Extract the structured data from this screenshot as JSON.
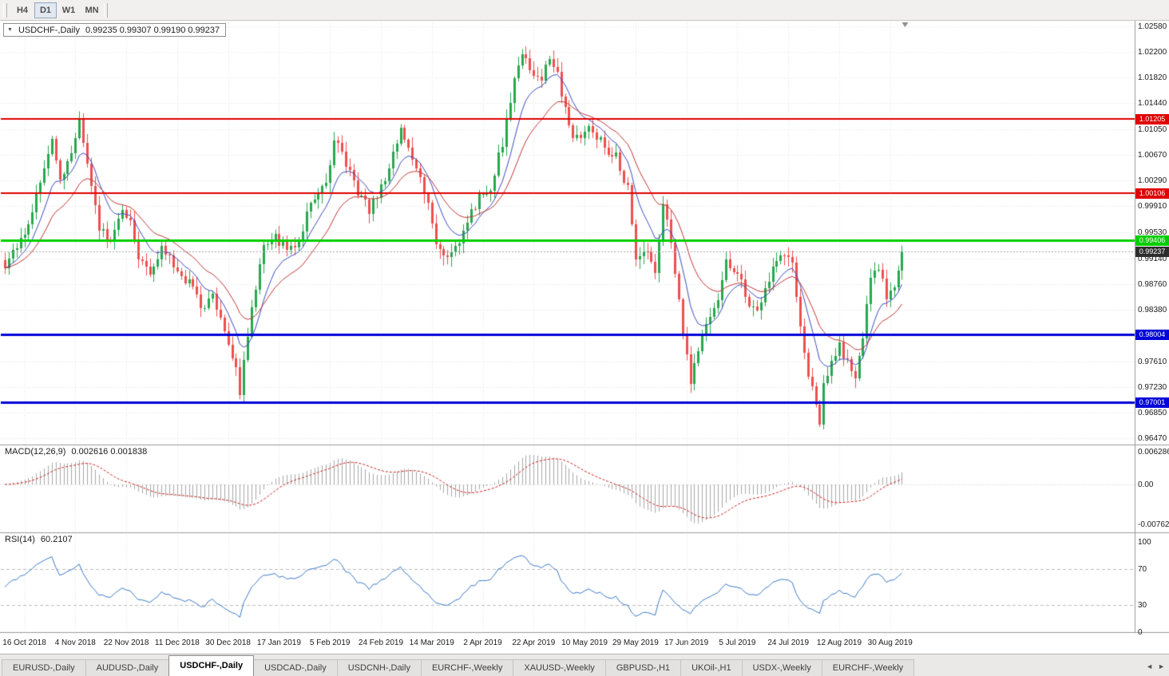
{
  "icons": {
    "collapse": "▼",
    "tab_scroll_left": "◄",
    "tab_scroll_right": "►"
  },
  "toolbar": {
    "timeframes": [
      {
        "label": "H4",
        "active": false
      },
      {
        "label": "D1",
        "active": true
      },
      {
        "label": "W1",
        "active": false
      },
      {
        "label": "MN",
        "active": false
      }
    ]
  },
  "chart": {
    "symbol_info": "USDCHF-,Daily",
    "ohlc": "0.99235 0.99307 0.99190 0.99237",
    "current_price": "0.99237",
    "y_ticks": [
      "1.02580",
      "1.02200",
      "1.01820",
      "1.01440",
      "1.01050",
      "1.00670",
      "1.00290",
      "0.99910",
      "0.99530",
      "0.99140",
      "0.98760",
      "0.98380",
      "0.97610",
      "0.97230",
      "0.96850",
      "0.96470"
    ],
    "levels": [
      {
        "label": "1.01205",
        "value": 1.01205,
        "color": "#e00000",
        "width": 2
      },
      {
        "label": "1.00106",
        "value": 1.00106,
        "color": "#e00000",
        "width": 2
      },
      {
        "label": "0.99406",
        "value": 0.99406,
        "color": "#00ce00",
        "width": 3
      },
      {
        "label": "0.98004",
        "value": 0.98004,
        "color": "#0000d8",
        "width": 3
      },
      {
        "label": "0.97001",
        "value": 0.97001,
        "color": "#0000d8",
        "width": 3
      }
    ],
    "x_labels": [
      "16 Oct 2018",
      "4 Nov 2018",
      "22 Nov 2018",
      "11 Dec 2018",
      "30 Dec 2018",
      "17 Jan 2019",
      "5 Feb 2019",
      "24 Feb 2019",
      "14 Mar 2019",
      "2 Apr 2019",
      "22 Apr 2019",
      "10 May 2019",
      "29 May 2019",
      "17 Jun 2019",
      "5 Jul 2019",
      "24 Jul 2019",
      "12 Aug 2019",
      "30 Aug 2019"
    ]
  },
  "macd": {
    "label": "MACD(12,26,9)",
    "values": "0.002616 0.001838",
    "axis": [
      "0.006286",
      "0.00",
      "-0.00762"
    ]
  },
  "rsi": {
    "label": "RSI(14)",
    "value": "60.2107",
    "axis": [
      "100",
      "70",
      "30",
      "0"
    ]
  },
  "tabs": {
    "items": [
      {
        "label": "EURUSD-,Daily",
        "active": false
      },
      {
        "label": "AUDUSD-,Daily",
        "active": false
      },
      {
        "label": "USDCHF-,Daily",
        "active": true
      },
      {
        "label": "USDCAD-,Daily",
        "active": false
      },
      {
        "label": "USDCNH-,Daily",
        "active": false
      },
      {
        "label": "EURCHF-,Weekly",
        "active": false
      },
      {
        "label": "XAUUSD-,Weekly",
        "active": false
      },
      {
        "label": "GBPUSD-,H1",
        "active": false
      },
      {
        "label": "UKOil-,H1",
        "active": false
      },
      {
        "label": "USDX-,Weekly",
        "active": false
      },
      {
        "label": "EURCHF-,Weekly",
        "active": false
      }
    ]
  },
  "chart_data": {
    "type": "candlestick",
    "symbol": "USDCHF",
    "timeframe": "Daily",
    "title": "USDCHF-,Daily",
    "ohlc_current": {
      "open": 0.99235,
      "high": 0.99307,
      "low": 0.9919,
      "close": 0.99237
    },
    "ylim": [
      0.9647,
      1.0258
    ],
    "bar_count": 230,
    "x_range": [
      "16 Oct 2018",
      "6 Sep 2019"
    ],
    "horizontal_levels": [
      1.01205,
      1.00106,
      0.99406,
      0.98004,
      0.97001
    ],
    "price_path": [
      [
        0,
        0.9905
      ],
      [
        3,
        0.993
      ],
      [
        6,
        0.9962
      ],
      [
        10,
        1.0045
      ],
      [
        12,
        1.009
      ],
      [
        14,
        1.003
      ],
      [
        17,
        1.007
      ],
      [
        19,
        1.0125
      ],
      [
        21,
        1.0055
      ],
      [
        24,
        0.996
      ],
      [
        27,
        0.9935
      ],
      [
        30,
        0.999
      ],
      [
        32,
        0.9972
      ],
      [
        34,
        0.991
      ],
      [
        37,
        0.9895
      ],
      [
        40,
        0.993
      ],
      [
        42,
        0.9915
      ],
      [
        45,
        0.9885
      ],
      [
        48,
        0.9878
      ],
      [
        50,
        0.9838
      ],
      [
        53,
        0.986
      ],
      [
        56,
        0.98
      ],
      [
        59,
        0.9745
      ],
      [
        60,
        0.9718
      ],
      [
        62,
        0.98
      ],
      [
        66,
        0.9938
      ],
      [
        69,
        0.9945
      ],
      [
        72,
        0.9928
      ],
      [
        75,
        0.994
      ],
      [
        78,
        1.0
      ],
      [
        82,
        1.0025
      ],
      [
        84,
        1.009
      ],
      [
        87,
        1.0055
      ],
      [
        90,
        1.0013
      ],
      [
        93,
        0.9985
      ],
      [
        96,
        1.0018
      ],
      [
        99,
        1.0065
      ],
      [
        101,
        1.0105
      ],
      [
        103,
        1.0078
      ],
      [
        105,
        1.0048
      ],
      [
        108,
        1.0
      ],
      [
        110,
        0.9938
      ],
      [
        112,
        0.992
      ],
      [
        115,
        0.993
      ],
      [
        118,
        0.997
      ],
      [
        121,
        1.0005
      ],
      [
        124,
        1.002
      ],
      [
        127,
        1.0085
      ],
      [
        129,
        1.015
      ],
      [
        132,
        1.0222
      ],
      [
        134,
        1.0188
      ],
      [
        137,
        1.018
      ],
      [
        139,
        1.021
      ],
      [
        141,
        1.0185
      ],
      [
        144,
        1.0108
      ],
      [
        146,
        1.009
      ],
      [
        149,
        1.0112
      ],
      [
        153,
        1.0078
      ],
      [
        156,
        1.0066
      ],
      [
        159,
        1.0015
      ],
      [
        161,
        0.9908
      ],
      [
        164,
        0.993
      ],
      [
        166,
        0.9895
      ],
      [
        168,
        0.9993
      ],
      [
        170,
        0.994
      ],
      [
        173,
        0.98
      ],
      [
        175,
        0.9735
      ],
      [
        177,
        0.9775
      ],
      [
        179,
        0.9822
      ],
      [
        182,
        0.9858
      ],
      [
        184,
        0.9905
      ],
      [
        186,
        0.9895
      ],
      [
        188,
        0.9876
      ],
      [
        191,
        0.9836
      ],
      [
        193,
        0.9852
      ],
      [
        195,
        0.9882
      ],
      [
        198,
        0.9925
      ],
      [
        201,
        0.9906
      ],
      [
        203,
        0.9817
      ],
      [
        205,
        0.974
      ],
      [
        207,
        0.97
      ],
      [
        208,
        0.9672
      ],
      [
        209,
        0.9729
      ],
      [
        211,
        0.9758
      ],
      [
        213,
        0.9788
      ],
      [
        215,
        0.9758
      ],
      [
        217,
        0.9735
      ],
      [
        219,
        0.98
      ],
      [
        221,
        0.988
      ],
      [
        223,
        0.99
      ],
      [
        225,
        0.9858
      ],
      [
        227,
        0.9876
      ],
      [
        229,
        0.99237
      ]
    ],
    "indicators": {
      "macd": {
        "fast": 12,
        "slow": 26,
        "signal": 9,
        "current": [
          0.002616,
          0.001838
        ],
        "visible_range": [
          -0.00762,
          0.006286
        ]
      },
      "rsi": {
        "period": 14,
        "current": 60.2107,
        "levels": [
          30,
          70
        ],
        "range": [
          0,
          100
        ]
      },
      "moving_averages": [
        {
          "period": 9,
          "color": "#3b4cc0"
        },
        {
          "period": 20,
          "color": "#c23535"
        }
      ]
    },
    "colors": {
      "up": "#27a84e",
      "down": "#ee4f4f",
      "histogram": "#a8a8a8",
      "signal_line": "#cc2222",
      "rsi_line": "#3c7ac8"
    }
  }
}
